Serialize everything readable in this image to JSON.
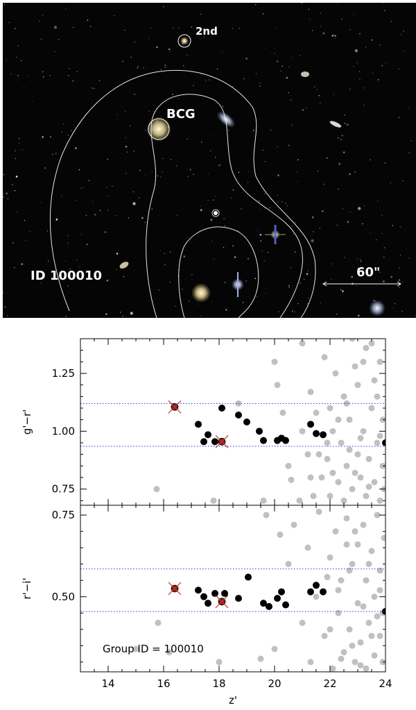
{
  "image": {
    "labels": {
      "second": "2nd",
      "bcg": "BCG",
      "id": "ID 100010",
      "scale": "60\""
    }
  },
  "chart_data": [
    {
      "type": "scatter",
      "ylabel": "g'−r'",
      "xlim": [
        13,
        24
      ],
      "ylim": [
        0.68,
        1.4
      ],
      "yticks": [
        0.75,
        1.0,
        1.25
      ],
      "ytick_labels": [
        "0.75",
        "1.00",
        "1.25"
      ],
      "hlines": [
        1.12,
        0.935
      ],
      "series": [
        {
          "role": "field",
          "color": "#c0c0c0",
          "points": [
            [
              15.75,
              0.75
            ],
            [
              17.8,
              0.7
            ],
            [
              18.7,
              1.12
            ],
            [
              19.6,
              0.7
            ],
            [
              20.0,
              1.3
            ],
            [
              20.1,
              1.2
            ],
            [
              20.3,
              1.08
            ],
            [
              20.5,
              0.85
            ],
            [
              20.6,
              0.79
            ],
            [
              20.9,
              0.7
            ],
            [
              21.0,
              1.0
            ],
            [
              21.2,
              0.9
            ],
            [
              21.3,
              1.17
            ],
            [
              21.4,
              0.72
            ],
            [
              21.5,
              1.08
            ],
            [
              21.7,
              0.8
            ],
            [
              21.8,
              1.32
            ],
            [
              21.9,
              0.88
            ],
            [
              22.0,
              1.1
            ],
            [
              22.0,
              0.72
            ],
            [
              22.1,
              1.0
            ],
            [
              22.2,
              1.25
            ],
            [
              22.3,
              0.78
            ],
            [
              22.4,
              0.95
            ],
            [
              22.5,
              1.15
            ],
            [
              22.5,
              0.7
            ],
            [
              22.6,
              0.85
            ],
            [
              22.7,
              1.05
            ],
            [
              22.8,
              0.75
            ],
            [
              22.9,
              1.28
            ],
            [
              23.0,
              0.9
            ],
            [
              23.0,
              1.2
            ],
            [
              23.1,
              0.8
            ],
            [
              23.2,
              1.0
            ],
            [
              23.3,
              0.72
            ],
            [
              23.3,
              1.36
            ],
            [
              23.4,
              0.88
            ],
            [
              23.5,
              1.1
            ],
            [
              23.6,
              0.78
            ],
            [
              23.6,
              1.22
            ],
            [
              23.7,
              0.95
            ],
            [
              23.8,
              0.7
            ],
            [
              23.8,
              1.3
            ],
            [
              23.9,
              0.85
            ],
            [
              23.9,
              1.05
            ],
            [
              23.95,
              0.75
            ],
            [
              22.8,
              1.4
            ],
            [
              23.5,
              1.38
            ],
            [
              21.0,
              1.38
            ],
            [
              22.3,
              1.05
            ],
            [
              21.9,
              0.95
            ],
            [
              23.1,
              0.97
            ],
            [
              22.6,
              1.12
            ],
            [
              21.6,
              0.9
            ],
            [
              23.4,
              0.76
            ],
            [
              22.9,
              0.82
            ],
            [
              23.7,
              1.15
            ],
            [
              21.3,
              0.8
            ],
            [
              22.1,
              0.82
            ],
            [
              23.2,
              1.3
            ],
            [
              22.7,
              0.92
            ],
            [
              23.8,
              0.98
            ]
          ]
        },
        {
          "role": "members",
          "color": "#000000",
          "points": [
            [
              17.25,
              1.03
            ],
            [
              17.45,
              0.955
            ],
            [
              17.6,
              0.985
            ],
            [
              17.85,
              0.955
            ],
            [
              18.1,
              1.1
            ],
            [
              18.7,
              1.07
            ],
            [
              19.0,
              1.04
            ],
            [
              19.45,
              1.0
            ],
            [
              19.6,
              0.96
            ],
            [
              20.1,
              0.96
            ],
            [
              20.25,
              0.97
            ],
            [
              20.4,
              0.96
            ],
            [
              21.3,
              1.03
            ],
            [
              21.5,
              0.99
            ],
            [
              21.75,
              0.985
            ],
            [
              24.0,
              0.95
            ]
          ]
        },
        {
          "role": "bcg",
          "color": "#8b1a1a",
          "points": [
            [
              16.4,
              1.105
            ],
            [
              18.1,
              0.955
            ]
          ]
        }
      ]
    },
    {
      "type": "scatter",
      "xlabel": "z'",
      "ylabel": "r'−i'",
      "xlim": [
        13,
        24
      ],
      "ylim": [
        0.27,
        0.78
      ],
      "xticks": [
        14,
        16,
        18,
        20,
        22,
        24
      ],
      "xtick_labels": [
        "14",
        "16",
        "18",
        "20",
        "22",
        "24"
      ],
      "yticks": [
        0.5,
        0.75
      ],
      "ytick_labels": [
        "0.50",
        "0.75"
      ],
      "hlines": [
        0.585,
        0.455
      ],
      "annotation": "Group ID = 100010",
      "series": [
        {
          "role": "field",
          "color": "#c0c0c0",
          "points": [
            [
              15.0,
              0.34
            ],
            [
              15.8,
              0.42
            ],
            [
              16.2,
              0.33
            ],
            [
              18.0,
              0.3
            ],
            [
              19.5,
              0.31
            ],
            [
              19.7,
              0.75
            ],
            [
              20.0,
              0.34
            ],
            [
              20.2,
              0.69
            ],
            [
              20.5,
              0.6
            ],
            [
              20.7,
              0.72
            ],
            [
              21.0,
              0.42
            ],
            [
              21.2,
              0.65
            ],
            [
              21.3,
              0.3
            ],
            [
              21.5,
              0.5
            ],
            [
              21.6,
              0.76
            ],
            [
              21.8,
              0.38
            ],
            [
              22.0,
              0.62
            ],
            [
              22.1,
              0.28
            ],
            [
              22.2,
              0.7
            ],
            [
              22.3,
              0.45
            ],
            [
              22.4,
              0.55
            ],
            [
              22.5,
              0.33
            ],
            [
              22.6,
              0.74
            ],
            [
              22.7,
              0.4
            ],
            [
              22.8,
              0.6
            ],
            [
              22.9,
              0.3
            ],
            [
              23.0,
              0.66
            ],
            [
              23.0,
              0.48
            ],
            [
              23.1,
              0.36
            ],
            [
              23.2,
              0.72
            ],
            [
              23.3,
              0.55
            ],
            [
              23.3,
              0.28
            ],
            [
              23.4,
              0.42
            ],
            [
              23.5,
              0.64
            ],
            [
              23.6,
              0.32
            ],
            [
              23.6,
              0.5
            ],
            [
              23.7,
              0.75
            ],
            [
              23.8,
              0.38
            ],
            [
              23.8,
              0.58
            ],
            [
              23.9,
              0.45
            ],
            [
              23.9,
              0.3
            ],
            [
              23.95,
              0.68
            ],
            [
              22.3,
              0.52
            ],
            [
              22.8,
              0.35
            ],
            [
              23.4,
              0.6
            ],
            [
              22.0,
              0.4
            ],
            [
              23.7,
              0.44
            ],
            [
              22.6,
              0.66
            ],
            [
              23.1,
              0.29
            ],
            [
              23.5,
              0.38
            ],
            [
              22.9,
              0.7
            ],
            [
              21.9,
              0.56
            ],
            [
              23.2,
              0.47
            ],
            [
              22.4,
              0.31
            ],
            [
              23.8,
              0.52
            ],
            [
              22.7,
              0.58
            ]
          ]
        },
        {
          "role": "members",
          "color": "#000000",
          "points": [
            [
              17.25,
              0.52
            ],
            [
              17.45,
              0.5
            ],
            [
              17.6,
              0.48
            ],
            [
              17.85,
              0.51
            ],
            [
              18.2,
              0.51
            ],
            [
              18.7,
              0.495
            ],
            [
              19.05,
              0.56
            ],
            [
              19.6,
              0.48
            ],
            [
              19.8,
              0.47
            ],
            [
              20.1,
              0.495
            ],
            [
              20.25,
              0.515
            ],
            [
              20.4,
              0.475
            ],
            [
              21.3,
              0.515
            ],
            [
              21.5,
              0.535
            ],
            [
              21.75,
              0.515
            ],
            [
              24.0,
              0.455
            ]
          ]
        },
        {
          "role": "bcg",
          "color": "#8b1a1a",
          "points": [
            [
              16.4,
              0.525
            ],
            [
              18.1,
              0.485
            ]
          ]
        }
      ]
    }
  ]
}
